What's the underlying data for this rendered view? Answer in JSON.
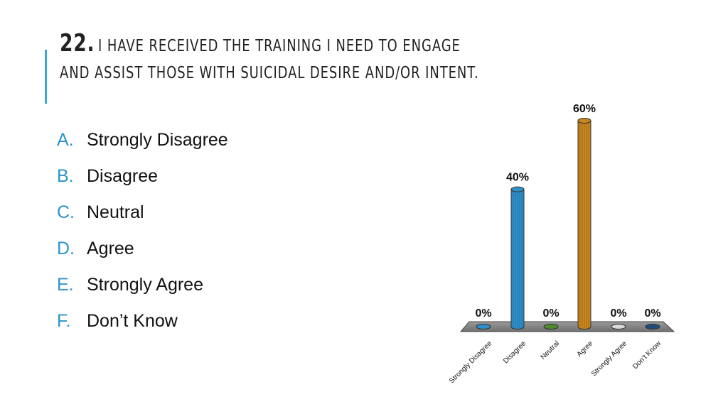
{
  "title": {
    "number": "22.",
    "text": "I have received the training I need to engage and assist those with suicidal desire and/or intent."
  },
  "options": [
    {
      "letter": "A.",
      "label": "Strongly Disagree"
    },
    {
      "letter": "B.",
      "label": "Disagree"
    },
    {
      "letter": "C.",
      "label": "Neutral"
    },
    {
      "letter": "D.",
      "label": "Agree"
    },
    {
      "letter": "E.",
      "label": "Strongly Agree"
    },
    {
      "letter": "F.",
      "label": "Don’t Know"
    }
  ],
  "chart_data": {
    "type": "bar",
    "categories": [
      "Strongly Disagree",
      "Disagree",
      "Neutral",
      "Agree",
      "Strongly Agree",
      "Don’t Know"
    ],
    "values": [
      0,
      40,
      0,
      60,
      0,
      0
    ],
    "value_labels": [
      "0%",
      "40%",
      "0%",
      "60%",
      "0%",
      "0%"
    ],
    "colors": [
      "#2f8fc9",
      "#2f8fc9",
      "#4c8a2a",
      "#c9861e",
      "#d9d9d9",
      "#1f4e79"
    ],
    "ylim": [
      0,
      60
    ],
    "grid": false,
    "legend": "none"
  }
}
